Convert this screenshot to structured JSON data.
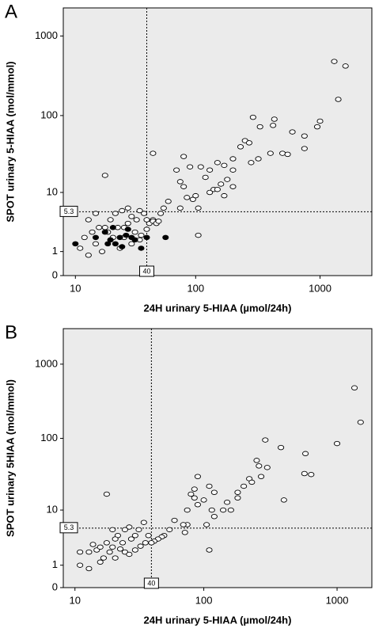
{
  "chart_data": [
    {
      "type": "scatter",
      "panel": "A",
      "xscale": "log1p",
      "yscale": "log1p",
      "x_label": "24H urinary 5-HIAA (µmol/24h)",
      "y_label": "SPOT urinary 5-HIAA (mol/mmol)",
      "xlim": [
        7.8,
        2600
      ],
      "ylim": [
        0,
        2250
      ],
      "xticks": [
        10,
        100,
        1000
      ],
      "yticks": [
        0,
        1,
        10,
        100,
        1000
      ],
      "vline": 40,
      "hline": 5.3,
      "series": [
        {
          "color": "#000000",
          "filled": false,
          "x": [
            1300,
            1600,
            1400,
            1000,
            950,
            750,
            600,
            430,
            420,
            330,
            290,
            250,
            270,
            230,
            170,
            200,
            150,
            320,
            400,
            500,
            550,
            750,
            280,
            200,
            110,
            130,
            120,
            90,
            80,
            70,
            45,
            18,
            75,
            80,
            95,
            85,
            130,
            140,
            150,
            170,
            160,
            200,
            180,
            100,
            105,
            75,
            60,
            55,
            52,
            45,
            42,
            40,
            38,
            35,
            33,
            30,
            28,
            25,
            22,
            20,
            18,
            16,
            15,
            13,
            14,
            12,
            11,
            13,
            15,
            17,
            19,
            21,
            23,
            26,
            28,
            30,
            32,
            35,
            40,
            45,
            48,
            50,
            105,
            24,
            20,
            36,
            26
          ],
          "y": [
            480,
            420,
            160,
            85,
            72,
            55,
            62,
            90,
            75,
            72,
            95,
            48,
            45,
            40,
            23,
            28,
            25,
            28,
            33,
            33,
            32,
            38,
            25,
            20,
            22,
            20,
            16,
            22,
            30,
            20,
            33,
            17,
            14,
            12,
            8,
            8.5,
            10,
            11,
            11,
            9,
            13,
            12,
            15,
            9,
            6,
            6,
            7.5,
            6,
            5,
            4,
            3.5,
            4,
            5,
            5.5,
            4,
            4.5,
            6,
            5.5,
            5,
            4,
            3,
            3,
            5,
            4,
            2.5,
            2,
            1.2,
            0.8,
            1.5,
            1,
            2.5,
            2,
            3,
            2,
            3.5,
            1.5,
            2.5,
            1.8,
            2.8,
            3.8,
            3.5,
            3.8,
            2.2,
            1.2,
            1.8,
            2.2,
            3
          ]
        },
        {
          "color": "#000000",
          "filled": true,
          "x": [
            10,
            15,
            18,
            20,
            22,
            25,
            28,
            30,
            32,
            19,
            36,
            40,
            57,
            21,
            27,
            24
          ],
          "y": [
            1.5,
            2,
            2.5,
            1.8,
            1.5,
            1.3,
            2.8,
            2,
            1.8,
            1.5,
            1.2,
            2,
            2,
            3,
            2.2,
            2
          ]
        }
      ]
    },
    {
      "type": "scatter",
      "panel": "B",
      "xscale": "log1p",
      "yscale": "log1p",
      "x_label": "24H urinary 5-HIAA (µmol/24h)",
      "y_label": "SPOT urinary 5HIAA (mol/mmol)",
      "xlim": [
        8,
        1820
      ],
      "ylim": [
        0,
        3000
      ],
      "xticks": [
        10,
        100,
        1000
      ],
      "yticks": [
        0,
        1,
        10,
        100,
        1000
      ],
      "vline": 40,
      "hline": 5.3,
      "series": [
        {
          "color": "#000000",
          "filled": false,
          "x": [
            1350,
            1500,
            1000,
            580,
            640,
            570,
            380,
            400,
            290,
            250,
            260,
            300,
            270,
            220,
            230,
            200,
            180,
            160,
            150,
            140,
            180,
            120,
            110,
            115,
            120,
            105,
            110,
            100,
            90,
            85,
            90,
            85,
            80,
            75,
            75,
            72,
            70,
            60,
            55,
            50,
            48,
            45,
            42,
            40,
            38,
            35,
            32,
            30,
            28,
            27,
            25,
            24,
            22,
            20,
            18,
            20,
            18,
            15,
            14,
            13,
            11,
            11,
            13,
            16,
            17,
            19,
            21,
            23,
            25,
            27,
            30,
            33,
            36,
            16,
            21
          ],
          "y": [
            480,
            165,
            85,
            62,
            32,
            33,
            75,
            14,
            95,
            50,
            42,
            40,
            30,
            28,
            25,
            22,
            15,
            10,
            13,
            10,
            18,
            18,
            22,
            10,
            8,
            6,
            2.2,
            14,
            12,
            15,
            30,
            20,
            17,
            10,
            6,
            4.5,
            6,
            7,
            5,
            4,
            3.8,
            3.5,
            3.2,
            3,
            4,
            6.5,
            5,
            4,
            3.5,
            5.5,
            5,
            3,
            4,
            5,
            17,
            2.5,
            3,
            2.2,
            2.8,
            2,
            1,
            2,
            0.8,
            1.2,
            1.5,
            2,
            1.5,
            2.3,
            2,
            1.8,
            2.2,
            2.6,
            3,
            2.5,
            3.5
          ]
        }
      ]
    }
  ]
}
